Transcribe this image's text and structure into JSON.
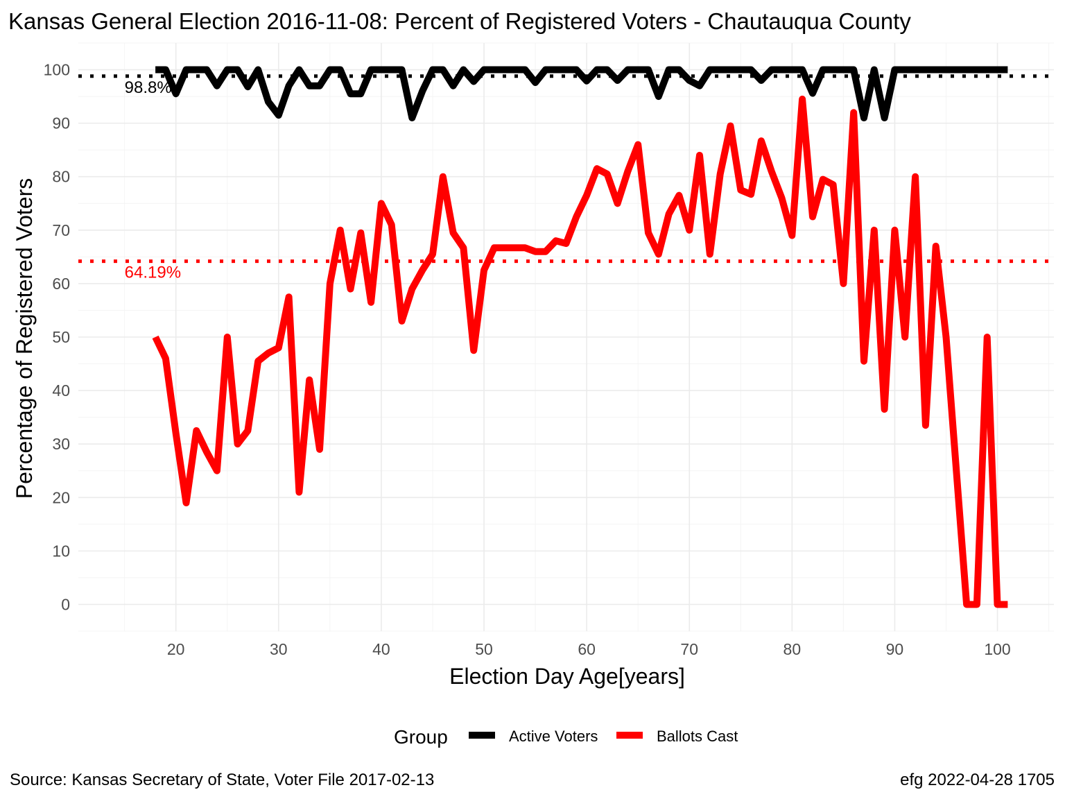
{
  "chart_data": {
    "type": "line",
    "title": "Kansas General Election 2016-11-08:  Percent of Registered Voters - Chautauqua County",
    "xlabel": "Election Day Age[years]",
    "ylabel": "Percentage of Registered Voters",
    "xlim": [
      10.5,
      105.5
    ],
    "ylim": [
      -5,
      105
    ],
    "x_ticks": [
      20,
      30,
      40,
      50,
      60,
      70,
      80,
      90,
      100
    ],
    "y_ticks": [
      0,
      10,
      20,
      30,
      40,
      50,
      60,
      70,
      80,
      90,
      100
    ],
    "grid": true,
    "legend": {
      "title": "Group",
      "position": "bottom",
      "entries": [
        "Active Voters",
        "Ballots Cast"
      ]
    },
    "reference_lines": [
      {
        "label": "98.8%",
        "value": 98.8,
        "color": "#000000",
        "style": "dotted"
      },
      {
        "label": "64.19%",
        "value": 64.19,
        "color": "#ff0000",
        "style": "dotted"
      }
    ],
    "series": [
      {
        "name": "Active Voters",
        "color": "#000000",
        "x": [
          18,
          19,
          20,
          21,
          22,
          23,
          24,
          25,
          26,
          27,
          28,
          29,
          30,
          31,
          32,
          33,
          34,
          35,
          36,
          37,
          38,
          39,
          40,
          41,
          42,
          43,
          44,
          45,
          46,
          47,
          48,
          49,
          50,
          51,
          52,
          53,
          54,
          55,
          56,
          57,
          58,
          59,
          60,
          61,
          62,
          63,
          64,
          65,
          66,
          67,
          68,
          69,
          70,
          71,
          72,
          73,
          74,
          75,
          76,
          77,
          78,
          79,
          80,
          81,
          82,
          83,
          84,
          85,
          86,
          87,
          88,
          89,
          90,
          91,
          92,
          93,
          94,
          95,
          96,
          97,
          98,
          99,
          100,
          101
        ],
        "values": [
          100,
          100,
          95.5,
          100,
          100,
          100,
          97,
          100,
          100,
          96.8,
          100,
          94,
          91.5,
          97,
          100,
          97,
          97,
          100,
          100,
          95.5,
          95.5,
          100,
          100,
          100,
          100,
          91,
          96,
          100,
          100,
          97,
          100,
          97.8,
          100,
          100,
          100,
          100,
          100,
          97.6,
          100,
          100,
          100,
          100,
          97.9,
          100,
          100,
          98,
          100,
          100,
          100,
          95,
          100,
          100,
          98,
          97,
          100,
          100,
          100,
          100,
          100,
          98,
          100,
          100,
          100,
          100,
          95.6,
          100,
          100,
          100,
          100,
          91,
          100,
          91,
          100,
          100,
          100,
          100,
          100,
          100,
          100,
          100,
          100,
          100,
          100,
          100
        ]
      },
      {
        "name": "Ballots Cast",
        "color": "#ff0000",
        "x": [
          18,
          19,
          20,
          21,
          22,
          23,
          24,
          25,
          26,
          27,
          28,
          29,
          30,
          31,
          32,
          33,
          34,
          35,
          36,
          37,
          38,
          39,
          40,
          41,
          42,
          43,
          44,
          45,
          46,
          47,
          48,
          49,
          50,
          51,
          52,
          53,
          54,
          55,
          56,
          57,
          58,
          59,
          60,
          61,
          62,
          63,
          64,
          65,
          66,
          67,
          68,
          69,
          70,
          71,
          72,
          73,
          74,
          75,
          76,
          77,
          78,
          79,
          80,
          81,
          82,
          83,
          84,
          85,
          86,
          87,
          88,
          89,
          90,
          91,
          92,
          93,
          94,
          95,
          96,
          97,
          98,
          99,
          100,
          101
        ],
        "values": [
          50,
          46,
          32,
          19,
          32.5,
          28.5,
          25,
          50,
          30,
          32.5,
          45.5,
          47,
          48,
          57.5,
          21,
          42,
          29,
          60,
          70,
          59,
          69.5,
          56.5,
          75,
          71,
          53,
          59,
          62.5,
          65.5,
          80,
          69.5,
          66.7,
          47.5,
          62.5,
          66.7,
          66.7,
          66.7,
          66.7,
          66,
          66,
          68,
          67.5,
          72.5,
          76.5,
          81.5,
          80.5,
          75,
          81,
          86,
          69.5,
          65.5,
          73,
          76.5,
          70,
          84,
          65.5,
          80.5,
          89.5,
          77.5,
          76.7,
          86.7,
          81,
          76,
          69,
          94.5,
          72.5,
          79.5,
          78.5,
          60,
          92,
          45.5,
          70,
          36.5,
          70,
          50,
          80,
          33.5,
          67,
          50,
          25,
          0,
          0,
          50,
          0,
          0
        ]
      }
    ]
  },
  "caption": {
    "source": "Source:  Kansas Secretary of State, Voter File  2017-02-13",
    "credit": "efg 2022-04-28 1705"
  }
}
